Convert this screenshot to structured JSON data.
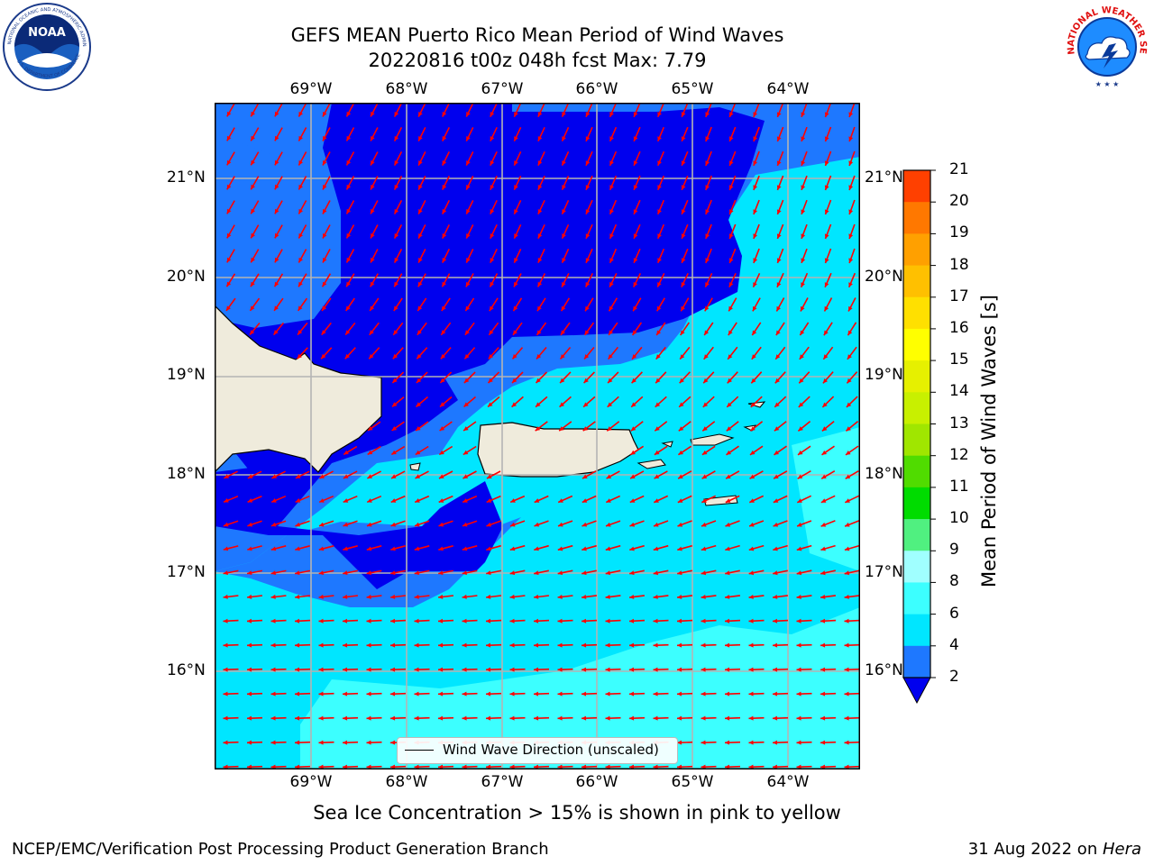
{
  "title": {
    "line1": "GEFS MEAN Puerto Rico Mean Period of Wind Waves",
    "line2": "20220816 t00z 048h fcst   Max: 7.79"
  },
  "logos": {
    "noaa_text": "NOAA",
    "noaa_ring_top": "NATIONAL OCEANIC AND ATMOSPHERIC ADMINISTRATION",
    "noaa_ring_bottom": "U.S. DEPARTMENT OF COMMERCE",
    "nws_ring": "NATIONAL WEATHER SERVICE"
  },
  "map": {
    "lon_labels": [
      "69°W",
      "68°W",
      "67°W",
      "66°W",
      "65°W",
      "64°W"
    ],
    "lat_labels": [
      "21°N",
      "20°N",
      "19°N",
      "18°N",
      "17°N",
      "16°N"
    ],
    "lon_range": [
      -70.0,
      -63.25
    ],
    "lat_range": [
      15.0,
      21.75
    ],
    "land_color": "#efebdc",
    "arrow_color": "#ff0000",
    "grid": true
  },
  "legend": {
    "label": "Wind Wave Direction (unscaled)"
  },
  "colorbar": {
    "title": "Mean Period of Wind Waves [s]",
    "ticks": [
      "2",
      "4",
      "6",
      "8",
      "9",
      "10",
      "11",
      "12",
      "13",
      "14",
      "15",
      "16",
      "17",
      "18",
      "19",
      "20",
      "21"
    ],
    "colors": [
      "#1e78ff",
      "#00e6ff",
      "#3cffff",
      "#a0ffff",
      "#50f080",
      "#00dc00",
      "#50dc00",
      "#a0e600",
      "#c8f000",
      "#e6f000",
      "#ffff00",
      "#ffe000",
      "#ffc000",
      "#ffa000",
      "#ff7800",
      "#ff4000",
      "#ff0000"
    ],
    "extend_color": "#0000ee"
  },
  "note": "Sea Ice Concentration > 15% is shown in pink to yellow",
  "footer": {
    "left": "NCEP/EMC/Verification Post Processing Product Generation Branch",
    "date": "31 Aug 2022 on ",
    "machine": "Hera"
  }
}
